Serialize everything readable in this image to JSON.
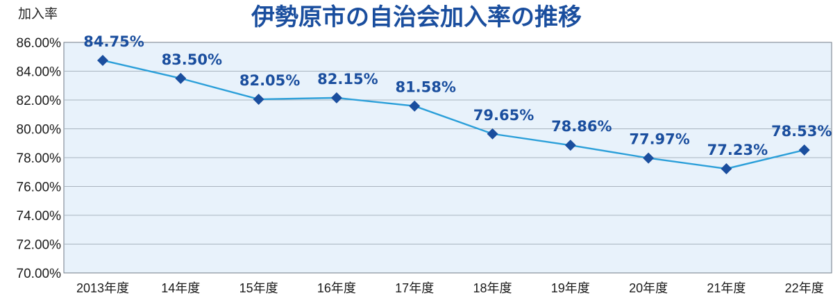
{
  "chart_data": {
    "type": "line",
    "title": "伊勢原市の自治会加入率の推移",
    "ylabel": "加入率",
    "xlabel": "",
    "categories": [
      "2013年度",
      "14年度",
      "15年度",
      "16年度",
      "17年度",
      "18年度",
      "19年度",
      "20年度",
      "21年度",
      "22年度"
    ],
    "series": [
      {
        "values": [
          84.75,
          83.5,
          82.05,
          82.15,
          81.58,
          79.65,
          78.86,
          77.97,
          77.23,
          78.53
        ],
        "labels": [
          "84.75%",
          "83.50%",
          "82.05%",
          "82.15%",
          "81.58%",
          "79.65%",
          "78.86%",
          "77.97%",
          "77.23%",
          "78.53%"
        ]
      }
    ],
    "ylim": [
      70,
      86
    ],
    "yticks": [
      70,
      72,
      74,
      76,
      78,
      80,
      82,
      84,
      86
    ],
    "ytick_labels": [
      "70.00%",
      "72.00%",
      "74.00%",
      "76.00%",
      "78.00%",
      "80.00%",
      "82.00%",
      "84.00%",
      "86.00%"
    ],
    "grid": true,
    "legend": "none",
    "colors": {
      "line": "#2b9fd9",
      "marker": "#1a4e9e",
      "data_label": "#1a4e9e",
      "title": "#1a4e9e",
      "plot_background": "#e8f2fb",
      "grid": "#a9b4bf"
    }
  }
}
